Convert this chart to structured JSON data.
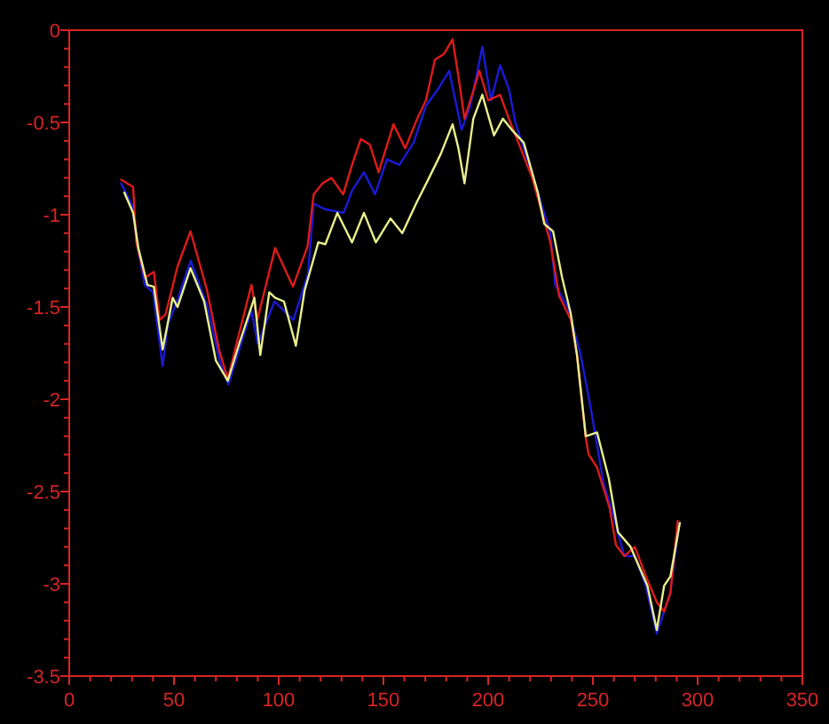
{
  "chart_data": {
    "type": "line",
    "xlim": [
      0,
      350
    ],
    "ylim": [
      -3.5,
      0
    ],
    "xticks": [
      0,
      {
        "value": 10,
        "label": null
      },
      {
        "value": 20,
        "label": null
      },
      {
        "value": 30,
        "label": null
      },
      {
        "value": 40,
        "label": null
      },
      50,
      {
        "value": 60,
        "label": null
      },
      {
        "value": 70,
        "label": null
      },
      {
        "value": 80,
        "label": null
      },
      {
        "value": 90,
        "label": null
      },
      100,
      {
        "value": 110,
        "label": null
      },
      {
        "value": 120,
        "label": null
      },
      {
        "value": 130,
        "label": null
      },
      {
        "value": 140,
        "label": null
      },
      150,
      {
        "value": 160,
        "label": null
      },
      {
        "value": 170,
        "label": null
      },
      {
        "value": 180,
        "label": null
      },
      {
        "value": 190,
        "label": null
      },
      200,
      {
        "value": 210,
        "label": null
      },
      {
        "value": 220,
        "label": null
      },
      {
        "value": 230,
        "label": null
      },
      {
        "value": 240,
        "label": null
      },
      250,
      {
        "value": 260,
        "label": null
      },
      {
        "value": 270,
        "label": null
      },
      {
        "value": 280,
        "label": null
      },
      {
        "value": 290,
        "label": null
      },
      300,
      {
        "value": 310,
        "label": null
      },
      {
        "value": 320,
        "label": null
      },
      {
        "value": 330,
        "label": null
      },
      {
        "value": 340,
        "label": null
      },
      350
    ],
    "yticks": [
      -3.5,
      {
        "value": -3.4,
        "label": null
      },
      {
        "value": -3.3,
        "label": null
      },
      {
        "value": -3.2,
        "label": null
      },
      {
        "value": -3.1,
        "label": null
      },
      -3,
      {
        "value": -2.9,
        "label": null
      },
      {
        "value": -2.8,
        "label": null
      },
      {
        "value": -2.7,
        "label": null
      },
      {
        "value": -2.6,
        "label": null
      },
      -2.5,
      {
        "value": -2.4,
        "label": null
      },
      {
        "value": -2.3,
        "label": null
      },
      {
        "value": -2.2,
        "label": null
      },
      {
        "value": -2.1,
        "label": null
      },
      -2,
      {
        "value": -1.9,
        "label": null
      },
      {
        "value": -1.8,
        "label": null
      },
      {
        "value": -1.7,
        "label": null
      },
      {
        "value": -1.6,
        "label": null
      },
      -1.5,
      {
        "value": -1.4,
        "label": null
      },
      {
        "value": -1.3,
        "label": null
      },
      {
        "value": -1.2,
        "label": null
      },
      {
        "value": -1.1,
        "label": null
      },
      -1,
      {
        "value": -0.9,
        "label": null
      },
      {
        "value": -0.8,
        "label": null
      },
      {
        "value": -0.7,
        "label": null
      },
      {
        "value": -0.6,
        "label": null
      },
      -0.5,
      {
        "value": -0.4,
        "label": null
      },
      {
        "value": -0.3,
        "label": null
      },
      {
        "value": -0.2,
        "label": null
      },
      {
        "value": -0.1,
        "label": null
      },
      0
    ],
    "series": [
      {
        "color": "#1a1ad8",
        "x": [
          24.8,
          30,
          33,
          36,
          40,
          44.6,
          47,
          52,
          58,
          66,
          72,
          76,
          82,
          87,
          90,
          98,
          107,
          114,
          116.7,
          122,
          131,
          135,
          140.7,
          146,
          151.7,
          157.6,
          164.4,
          170.3,
          176,
          181.4,
          187.3,
          191.5,
          197.2,
          201.4,
          205.7,
          209.9,
          213,
          221,
          229.7,
          232,
          238,
          244,
          249,
          255,
          259,
          265,
          270,
          275,
          280.5,
          284,
          287,
          291
        ],
        "values": [
          -0.83,
          -0.95,
          -1.2,
          -1.38,
          -1.42,
          -1.82,
          -1.6,
          -1.45,
          -1.25,
          -1.5,
          -1.8,
          -1.92,
          -1.7,
          -1.52,
          -1.7,
          -1.47,
          -1.57,
          -1.32,
          -0.94,
          -0.97,
          -0.99,
          -0.87,
          -0.77,
          -0.89,
          -0.7,
          -0.73,
          -0.61,
          -0.41,
          -0.32,
          -0.22,
          -0.54,
          -0.41,
          -0.09,
          -0.38,
          -0.19,
          -0.32,
          -0.5,
          -0.78,
          -1.1,
          -1.38,
          -1.5,
          -1.75,
          -2.05,
          -2.45,
          -2.6,
          -2.85,
          -2.85,
          -3.0,
          -3.27,
          -3.15,
          -3.05,
          -2.68
        ]
      },
      {
        "color": "#e01a1a",
        "x": [
          24.8,
          30.5,
          32,
          36.2,
          40.4,
          43.2,
          46,
          51.7,
          57.9,
          65.8,
          71.5,
          75.7,
          81.4,
          87,
          89.8,
          98.3,
          106.8,
          113.8,
          116.7,
          120.9,
          125.2,
          130.8,
          135,
          139.2,
          143.5,
          147.7,
          154.8,
          160.4,
          166.1,
          170.3,
          174.6,
          178.8,
          183,
          185.8,
          188.7,
          192.9,
          195.8,
          200,
          205.7,
          209.9,
          212.7,
          221,
          229.7,
          233.9,
          239.5,
          242.4,
          246.6,
          248,
          252,
          258,
          261,
          265,
          270,
          275,
          280.5,
          284,
          287,
          290.5
        ],
        "values": [
          -0.81,
          -0.85,
          -1.15,
          -1.34,
          -1.31,
          -1.57,
          -1.54,
          -1.28,
          -1.09,
          -1.41,
          -1.73,
          -1.89,
          -1.63,
          -1.38,
          -1.57,
          -1.18,
          -1.39,
          -1.17,
          -0.89,
          -0.83,
          -0.8,
          -0.89,
          -0.73,
          -0.59,
          -0.62,
          -0.77,
          -0.51,
          -0.64,
          -0.48,
          -0.38,
          -0.16,
          -0.13,
          -0.05,
          -0.25,
          -0.48,
          -0.33,
          -0.22,
          -0.38,
          -0.35,
          -0.48,
          -0.56,
          -0.8,
          -1.15,
          -1.44,
          -1.57,
          -1.76,
          -2.21,
          -2.3,
          -2.37,
          -2.59,
          -2.79,
          -2.85,
          -2.8,
          -2.95,
          -3.1,
          -3.15,
          -3.05,
          -2.66
        ]
      },
      {
        "color": "#e8f08c",
        "x": [
          26.3,
          30.5,
          33,
          37.3,
          40.4,
          44.6,
          49.4,
          51.7,
          57.9,
          64.4,
          70,
          75.7,
          81.4,
          88.4,
          91.2,
          95.5,
          98.3,
          102.5,
          108.2,
          112.4,
          118.9,
          122.3,
          128,
          135,
          140.7,
          146.4,
          153.4,
          159,
          166,
          171.8,
          177.4,
          183,
          185.8,
          188.7,
          192.9,
          197.2,
          202.8,
          207,
          211.3,
          217,
          223.7,
          226.8,
          231,
          235.3,
          239.5,
          242.4,
          246.6,
          252,
          257.6,
          262,
          268,
          276,
          280.5,
          284,
          287,
          291.5
        ],
        "values": [
          -0.88,
          -0.99,
          -1.18,
          -1.38,
          -1.39,
          -1.73,
          -1.45,
          -1.5,
          -1.29,
          -1.47,
          -1.79,
          -1.9,
          -1.69,
          -1.45,
          -1.76,
          -1.42,
          -1.45,
          -1.47,
          -1.71,
          -1.41,
          -1.15,
          -1.16,
          -0.99,
          -1.15,
          -0.99,
          -1.15,
          -1.02,
          -1.1,
          -0.93,
          -0.8,
          -0.67,
          -0.51,
          -0.64,
          -0.83,
          -0.48,
          -0.35,
          -0.57,
          -0.48,
          -0.54,
          -0.61,
          -0.88,
          -1.05,
          -1.09,
          -1.34,
          -1.54,
          -1.76,
          -2.2,
          -2.18,
          -2.43,
          -2.72,
          -2.8,
          -3.01,
          -3.25,
          -3.01,
          -2.96,
          -2.67
        ]
      }
    ]
  }
}
